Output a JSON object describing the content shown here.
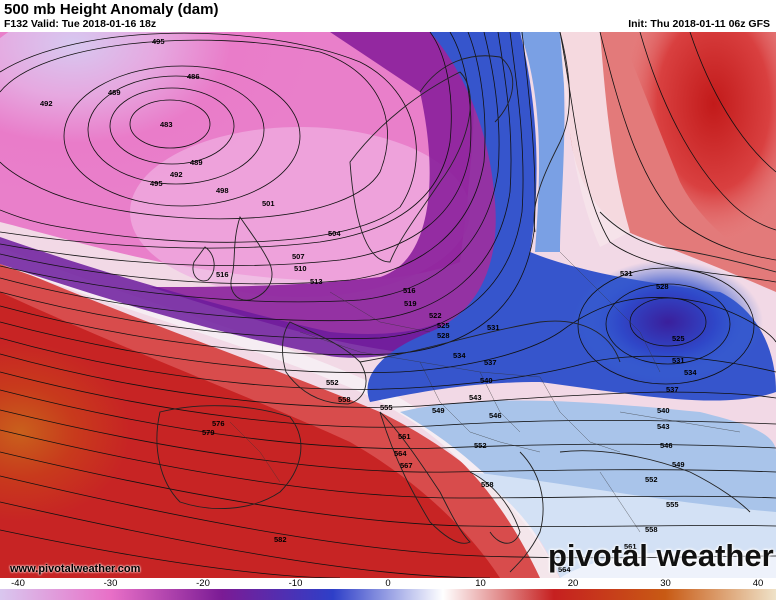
{
  "header": {
    "title": "500 mb Height Anomaly (dam)",
    "valid": "F132 Valid: Tue 2018-01-16 18z",
    "init": "Init: Thu 2018-01-11 06z GFS"
  },
  "colorbar": {
    "ticks": [
      "-40",
      "-30",
      "-20",
      "-10",
      "0",
      "10",
      "20",
      "30",
      "40"
    ],
    "tick_values": [
      -40,
      -30,
      -20,
      -10,
      0,
      10,
      20,
      30,
      40
    ],
    "range": [
      -40,
      40
    ],
    "colors": [
      "#d9c7ef",
      "#e86fc7",
      "#7b1b95",
      "#2e3fc8",
      "#ffffff",
      "#c62020",
      "#c85a14",
      "#efe2c8"
    ]
  },
  "contour_labels": [
    {
      "text": "495"
    },
    {
      "text": "486"
    },
    {
      "text": "489"
    },
    {
      "text": "492"
    },
    {
      "text": "483"
    },
    {
      "text": "489"
    },
    {
      "text": "492"
    },
    {
      "text": "495"
    },
    {
      "text": "498"
    },
    {
      "text": "501"
    },
    {
      "text": "504"
    },
    {
      "text": "507"
    },
    {
      "text": "510"
    },
    {
      "text": "513"
    },
    {
      "text": "516"
    },
    {
      "text": "516"
    },
    {
      "text": "519"
    },
    {
      "text": "522"
    },
    {
      "text": "525"
    },
    {
      "text": "528"
    },
    {
      "text": "531"
    },
    {
      "text": "534"
    },
    {
      "text": "537"
    },
    {
      "text": "540"
    },
    {
      "text": "543"
    },
    {
      "text": "546"
    },
    {
      "text": "549"
    },
    {
      "text": "552"
    },
    {
      "text": "555"
    },
    {
      "text": "558"
    },
    {
      "text": "561"
    },
    {
      "text": "564"
    },
    {
      "text": "567"
    },
    {
      "text": "576"
    },
    {
      "text": "579"
    },
    {
      "text": "582"
    },
    {
      "text": "531"
    },
    {
      "text": "528"
    },
    {
      "text": "525"
    },
    {
      "text": "531"
    },
    {
      "text": "534"
    },
    {
      "text": "537"
    },
    {
      "text": "540"
    },
    {
      "text": "543"
    },
    {
      "text": "546"
    },
    {
      "text": "549"
    },
    {
      "text": "552"
    },
    {
      "text": "555"
    },
    {
      "text": "558"
    },
    {
      "text": "561"
    },
    {
      "text": "564"
    },
    {
      "text": "552"
    },
    {
      "text": "558"
    }
  ],
  "watermark": "pivotal weather",
  "website": "www.pivotalweather.com"
}
